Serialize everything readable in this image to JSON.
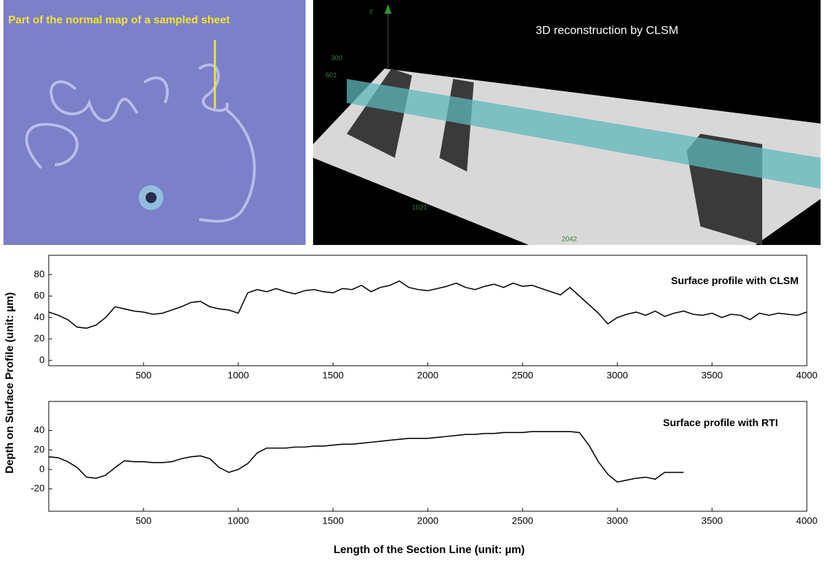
{
  "panels": {
    "normal_map": {
      "caption": "Part of the  normal map of a sampled sheet"
    },
    "clsm_3d": {
      "caption": "3D reconstruction  by CLSM",
      "axis_labels": [
        "z",
        "300",
        "601",
        "1021",
        "2042"
      ]
    }
  },
  "shared_axes": {
    "y_label": "Depth on Surface Profile (unit: µm)",
    "x_label": "Length of the Section Line (unit: µm)"
  },
  "chart_data": [
    {
      "type": "line",
      "title": "Surface profile with CLSM",
      "color": "#000000",
      "x": [
        0,
        50,
        100,
        150,
        200,
        250,
        300,
        350,
        400,
        450,
        500,
        550,
        600,
        650,
        700,
        750,
        800,
        850,
        900,
        950,
        1000,
        1050,
        1100,
        1150,
        1200,
        1250,
        1300,
        1350,
        1400,
        1450,
        1500,
        1550,
        1600,
        1650,
        1700,
        1750,
        1800,
        1850,
        1900,
        1950,
        2000,
        2050,
        2100,
        2150,
        2200,
        2250,
        2300,
        2350,
        2400,
        2450,
        2500,
        2550,
        2600,
        2650,
        2700,
        2750,
        2800,
        2850,
        2900,
        2950,
        3000,
        3050,
        3100,
        3150,
        3200,
        3250,
        3300,
        3350,
        3400,
        3450,
        3500,
        3550,
        3600,
        3650,
        3700,
        3750,
        3800,
        3850,
        3900,
        3950,
        4000
      ],
      "values": [
        45,
        42,
        38,
        31,
        30,
        33,
        40,
        50,
        48,
        46,
        45,
        43,
        44,
        47,
        50,
        54,
        55,
        50,
        48,
        47,
        44,
        63,
        66,
        64,
        67,
        64,
        62,
        65,
        66,
        64,
        63,
        67,
        66,
        70,
        64,
        68,
        70,
        74,
        68,
        66,
        65,
        67,
        69,
        72,
        68,
        66,
        69,
        71,
        68,
        72,
        69,
        70,
        67,
        64,
        61,
        68,
        60,
        52,
        44,
        34,
        40,
        43,
        45,
        42,
        46,
        41,
        44,
        46,
        43,
        42,
        44,
        40,
        43,
        42,
        38,
        44,
        42,
        44,
        43,
        42,
        45
      ],
      "xlim": [
        0,
        4000
      ],
      "ylim": [
        -5,
        98
      ],
      "xticks": [
        500,
        1000,
        1500,
        2000,
        2500,
        3000,
        3500,
        4000
      ],
      "yticks": [
        0,
        20,
        40,
        60,
        80
      ]
    },
    {
      "type": "line",
      "title": "Surface profile with RTI",
      "color": "#000000",
      "x": [
        0,
        50,
        100,
        150,
        200,
        250,
        300,
        350,
        400,
        450,
        500,
        550,
        600,
        650,
        700,
        750,
        800,
        850,
        900,
        950,
        1000,
        1050,
        1100,
        1150,
        1200,
        1250,
        1300,
        1350,
        1400,
        1450,
        1500,
        1550,
        1600,
        1650,
        1700,
        1750,
        1800,
        1850,
        1900,
        1950,
        2000,
        2050,
        2100,
        2150,
        2200,
        2250,
        2300,
        2350,
        2400,
        2450,
        2500,
        2550,
        2600,
        2650,
        2700,
        2750,
        2800,
        2850,
        2900,
        2950,
        3000,
        3050,
        3100,
        3150,
        3200,
        3250,
        3300,
        3350
      ],
      "values": [
        13,
        12,
        8,
        2,
        -8,
        -9,
        -6,
        2,
        9,
        8,
        8,
        7,
        7,
        8,
        11,
        13,
        14,
        11,
        2,
        -3,
        0,
        6,
        17,
        22,
        22,
        22,
        23,
        23,
        24,
        24,
        25,
        26,
        26,
        27,
        28,
        29,
        30,
        31,
        32,
        32,
        32,
        33,
        34,
        35,
        36,
        36,
        37,
        37,
        38,
        38,
        38,
        39,
        39,
        39,
        39,
        39,
        38,
        25,
        8,
        -5,
        -13,
        -11,
        -9,
        -8,
        -10,
        -3,
        -3,
        -3
      ],
      "xlim": [
        0,
        4000
      ],
      "ylim": [
        -43,
        70
      ],
      "xticks": [
        500,
        1000,
        1500,
        2000,
        2500,
        3000,
        3500,
        4000
      ],
      "yticks": [
        -20,
        0,
        20,
        40
      ]
    }
  ]
}
